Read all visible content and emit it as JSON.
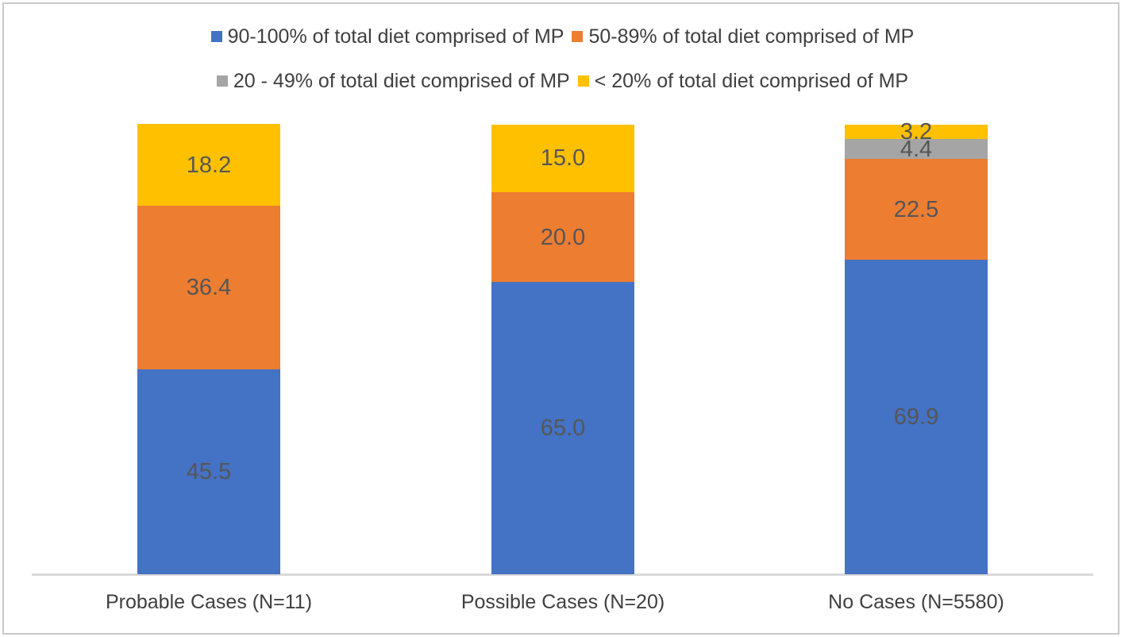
{
  "chart_data": {
    "type": "bar",
    "stacked": true,
    "orientation": "vertical",
    "title": "",
    "xlabel": "",
    "ylabel": "",
    "ylim": [
      0,
      100
    ],
    "grid": false,
    "y_axis_visible": false,
    "legend_position": "top",
    "legend_rows": [
      [
        0,
        1
      ],
      [
        2,
        3
      ]
    ],
    "categories": [
      "Probable Cases (N=11)",
      "Possible Cases (N=20)",
      "No Cases (N=5580)"
    ],
    "series": [
      {
        "name": "90-100% of total diet comprised of MP",
        "color": "#4472C4",
        "values": [
          45.5,
          65.0,
          69.9
        ],
        "labels": [
          "45.5",
          "65.0",
          "69.9"
        ]
      },
      {
        "name": "50-89% of total diet comprised of MP",
        "color": "#ED7D31",
        "values": [
          36.4,
          20.0,
          22.5
        ],
        "labels": [
          "36.4",
          "20.0",
          "22.5"
        ]
      },
      {
        "name": "20 - 49% of total diet comprised of MP",
        "color": "#A5A5A5",
        "values": [
          0,
          0,
          4.4
        ],
        "labels": [
          "",
          "",
          "4.4"
        ]
      },
      {
        "name": "< 20% of total diet comprised of MP",
        "color": "#FFC000",
        "values": [
          18.2,
          15.0,
          3.2
        ],
        "labels": [
          "18.2",
          "15.0",
          "3.2"
        ]
      }
    ],
    "colors": {
      "background": "#FFFFFF",
      "frame_border": "#C9C9C9",
      "axis_line": "#D9D9D9",
      "legend_text": "#3F3F3F",
      "category_text": "#3F3F3F",
      "data_label_text": "#565656"
    }
  }
}
